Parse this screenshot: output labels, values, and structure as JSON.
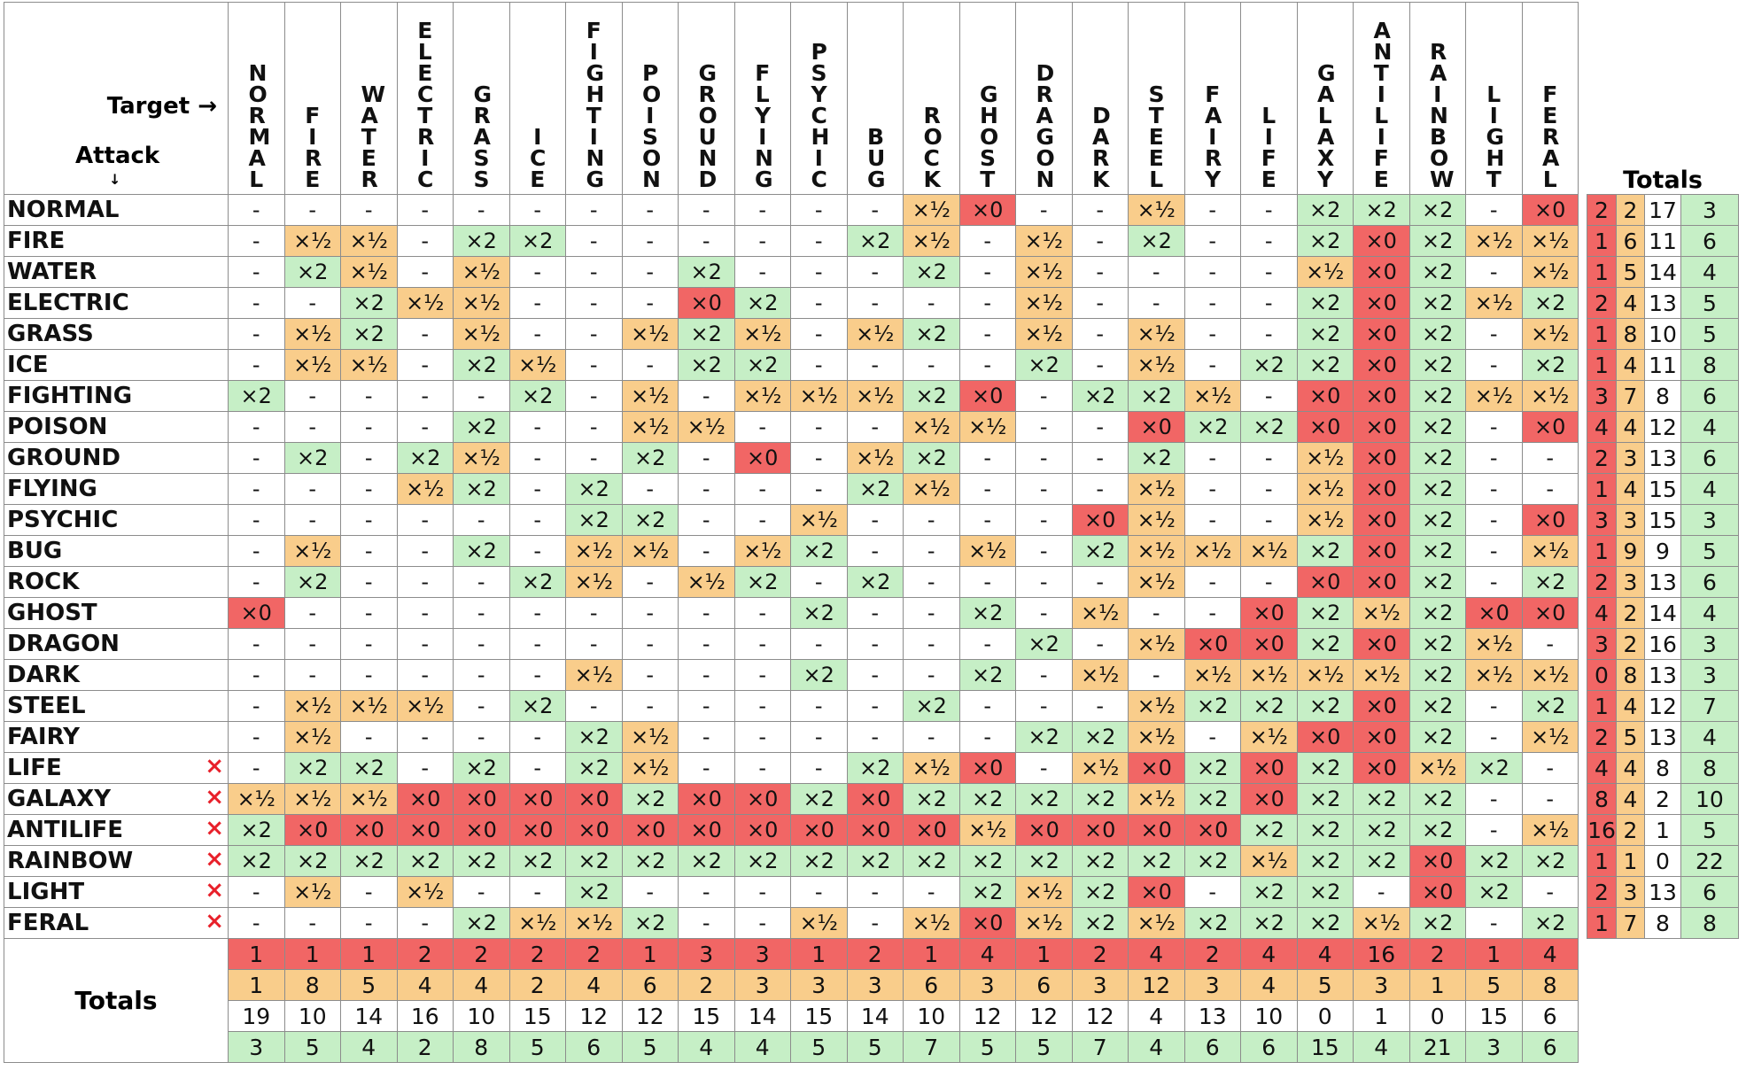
{
  "header": {
    "target_label": "Target →",
    "attack_label": "Attack",
    "down_arrow": "↓",
    "totals_label": "Totals"
  },
  "types": [
    "NORMAL",
    "FIRE",
    "WATER",
    "ELECTRIC",
    "GRASS",
    "ICE",
    "FIGHTING",
    "POISON",
    "GROUND",
    "FLYING",
    "PSYCHIC",
    "BUG",
    "ROCK",
    "GHOST",
    "DRAGON",
    "DARK",
    "STEEL",
    "FAIRY",
    "LIFE",
    "GALAXY",
    "ANTILIFE",
    "RAINBOW",
    "LIGHT",
    "FERAL"
  ],
  "rows": [
    {
      "name": "NORMAL",
      "marked": false,
      "cells": [
        "-",
        "-",
        "-",
        "-",
        "-",
        "-",
        "-",
        "-",
        "-",
        "-",
        "-",
        "-",
        "×½",
        "×0",
        "-",
        "-",
        "×½",
        "-",
        "-",
        "×2",
        "×2",
        "×2",
        "-",
        "×0"
      ],
      "totals": [
        "2",
        "2",
        "17",
        "3"
      ]
    },
    {
      "name": "FIRE",
      "marked": false,
      "cells": [
        "-",
        "×½",
        "×½",
        "-",
        "×2",
        "×2",
        "-",
        "-",
        "-",
        "-",
        "-",
        "×2",
        "×½",
        "-",
        "×½",
        "-",
        "×2",
        "-",
        "-",
        "×2",
        "×0",
        "×2",
        "×½",
        "×½"
      ],
      "totals": [
        "1",
        "6",
        "11",
        "6"
      ]
    },
    {
      "name": "WATER",
      "marked": false,
      "cells": [
        "-",
        "×2",
        "×½",
        "-",
        "×½",
        "-",
        "-",
        "-",
        "×2",
        "-",
        "-",
        "-",
        "×2",
        "-",
        "×½",
        "-",
        "-",
        "-",
        "-",
        "×½",
        "×0",
        "×2",
        "-",
        "×½"
      ],
      "totals": [
        "1",
        "5",
        "14",
        "4"
      ]
    },
    {
      "name": "ELECTRIC",
      "marked": false,
      "cells": [
        "-",
        "-",
        "×2",
        "×½",
        "×½",
        "-",
        "-",
        "-",
        "×0",
        "×2",
        "-",
        "-",
        "-",
        "-",
        "×½",
        "-",
        "-",
        "-",
        "-",
        "×2",
        "×0",
        "×2",
        "×½",
        "×2"
      ],
      "totals": [
        "2",
        "4",
        "13",
        "5"
      ]
    },
    {
      "name": "GRASS",
      "marked": false,
      "cells": [
        "-",
        "×½",
        "×2",
        "-",
        "×½",
        "-",
        "-",
        "×½",
        "×2",
        "×½",
        "-",
        "×½",
        "×2",
        "-",
        "×½",
        "-",
        "×½",
        "-",
        "-",
        "×2",
        "×0",
        "×2",
        "-",
        "×½"
      ],
      "totals": [
        "1",
        "8",
        "10",
        "5"
      ]
    },
    {
      "name": "ICE",
      "marked": false,
      "cells": [
        "-",
        "×½",
        "×½",
        "-",
        "×2",
        "×½",
        "-",
        "-",
        "×2",
        "×2",
        "-",
        "-",
        "-",
        "-",
        "×2",
        "-",
        "×½",
        "-",
        "×2",
        "×2",
        "×0",
        "×2",
        "-",
        "×2"
      ],
      "totals": [
        "1",
        "4",
        "11",
        "8"
      ]
    },
    {
      "name": "FIGHTING",
      "marked": false,
      "cells": [
        "×2",
        "-",
        "-",
        "-",
        "-",
        "×2",
        "-",
        "×½",
        "-",
        "×½",
        "×½",
        "×½",
        "×2",
        "×0",
        "-",
        "×2",
        "×2",
        "×½",
        "-",
        "×0",
        "×0",
        "×2",
        "×½",
        "×½"
      ],
      "totals": [
        "3",
        "7",
        "8",
        "6"
      ]
    },
    {
      "name": "POISON",
      "marked": false,
      "cells": [
        "-",
        "-",
        "-",
        "-",
        "×2",
        "-",
        "-",
        "×½",
        "×½",
        "-",
        "-",
        "-",
        "×½",
        "×½",
        "-",
        "-",
        "×0",
        "×2",
        "×2",
        "×0",
        "×0",
        "×2",
        "-",
        "×0"
      ],
      "totals": [
        "4",
        "4",
        "12",
        "4"
      ]
    },
    {
      "name": "GROUND",
      "marked": false,
      "cells": [
        "-",
        "×2",
        "-",
        "×2",
        "×½",
        "-",
        "-",
        "×2",
        "-",
        "×0",
        "-",
        "×½",
        "×2",
        "-",
        "-",
        "-",
        "×2",
        "-",
        "-",
        "×½",
        "×0",
        "×2",
        "-",
        "-"
      ],
      "totals": [
        "2",
        "3",
        "13",
        "6"
      ]
    },
    {
      "name": "FLYING",
      "marked": false,
      "cells": [
        "-",
        "-",
        "-",
        "×½",
        "×2",
        "-",
        "×2",
        "-",
        "-",
        "-",
        "-",
        "×2",
        "×½",
        "-",
        "-",
        "-",
        "×½",
        "-",
        "-",
        "×½",
        "×0",
        "×2",
        "-",
        "-"
      ],
      "totals": [
        "1",
        "4",
        "15",
        "4"
      ]
    },
    {
      "name": "PSYCHIC",
      "marked": false,
      "cells": [
        "-",
        "-",
        "-",
        "-",
        "-",
        "-",
        "×2",
        "×2",
        "-",
        "-",
        "×½",
        "-",
        "-",
        "-",
        "-",
        "×0",
        "×½",
        "-",
        "-",
        "×½",
        "×0",
        "×2",
        "-",
        "×0"
      ],
      "totals": [
        "3",
        "3",
        "15",
        "3"
      ]
    },
    {
      "name": "BUG",
      "marked": false,
      "cells": [
        "-",
        "×½",
        "-",
        "-",
        "×2",
        "-",
        "×½",
        "×½",
        "-",
        "×½",
        "×2",
        "-",
        "-",
        "×½",
        "-",
        "×2",
        "×½",
        "×½",
        "×½",
        "×2",
        "×0",
        "×2",
        "-",
        "×½"
      ],
      "totals": [
        "1",
        "9",
        "9",
        "5"
      ]
    },
    {
      "name": "ROCK",
      "marked": false,
      "cells": [
        "-",
        "×2",
        "-",
        "-",
        "-",
        "×2",
        "×½",
        "-",
        "×½",
        "×2",
        "-",
        "×2",
        "-",
        "-",
        "-",
        "-",
        "×½",
        "-",
        "-",
        "×0",
        "×0",
        "×2",
        "-",
        "×2"
      ],
      "totals": [
        "2",
        "3",
        "13",
        "6"
      ]
    },
    {
      "name": "GHOST",
      "marked": false,
      "cells": [
        "×0",
        "-",
        "-",
        "-",
        "-",
        "-",
        "-",
        "-",
        "-",
        "-",
        "×2",
        "-",
        "-",
        "×2",
        "-",
        "×½",
        "-",
        "-",
        "×0",
        "×2",
        "×½",
        "×2",
        "×0",
        "×0"
      ],
      "totals": [
        "4",
        "2",
        "14",
        "4"
      ]
    },
    {
      "name": "DRAGON",
      "marked": false,
      "cells": [
        "-",
        "-",
        "-",
        "-",
        "-",
        "-",
        "-",
        "-",
        "-",
        "-",
        "-",
        "-",
        "-",
        "-",
        "×2",
        "-",
        "×½",
        "×0",
        "×0",
        "×2",
        "×0",
        "×2",
        "×½",
        "-"
      ],
      "totals": [
        "3",
        "2",
        "16",
        "3"
      ]
    },
    {
      "name": "DARK",
      "marked": false,
      "cells": [
        "-",
        "-",
        "-",
        "-",
        "-",
        "-",
        "×½",
        "-",
        "-",
        "-",
        "×2",
        "-",
        "-",
        "×2",
        "-",
        "×½",
        "-",
        "×½",
        "×½",
        "×½",
        "×½",
        "×2",
        "×½",
        "×½"
      ],
      "totals": [
        "0",
        "8",
        "13",
        "3"
      ]
    },
    {
      "name": "STEEL",
      "marked": false,
      "cells": [
        "-",
        "×½",
        "×½",
        "×½",
        "-",
        "×2",
        "-",
        "-",
        "-",
        "-",
        "-",
        "-",
        "×2",
        "-",
        "-",
        "-",
        "×½",
        "×2",
        "×2",
        "×2",
        "×0",
        "×2",
        "-",
        "×2"
      ],
      "totals": [
        "1",
        "4",
        "12",
        "7"
      ]
    },
    {
      "name": "FAIRY",
      "marked": false,
      "cells": [
        "-",
        "×½",
        "-",
        "-",
        "-",
        "-",
        "×2",
        "×½",
        "-",
        "-",
        "-",
        "-",
        "-",
        "-",
        "×2",
        "×2",
        "×½",
        "-",
        "×½",
        "×0",
        "×0",
        "×2",
        "-",
        "×½"
      ],
      "totals": [
        "2",
        "5",
        "13",
        "4"
      ]
    },
    {
      "name": "LIFE",
      "marked": true,
      "cells": [
        "-",
        "×2",
        "×2",
        "-",
        "×2",
        "-",
        "×2",
        "×½",
        "-",
        "-",
        "-",
        "×2",
        "×½",
        "×0",
        "-",
        "×½",
        "×0",
        "×2",
        "×0",
        "×2",
        "×0",
        "×½",
        "×2",
        "-"
      ],
      "totals": [
        "4",
        "4",
        "8",
        "8"
      ]
    },
    {
      "name": "GALAXY",
      "marked": true,
      "cells": [
        "×½",
        "×½",
        "×½",
        "×0",
        "×0",
        "×0",
        "×0",
        "×2",
        "×0",
        "×0",
        "×2",
        "×0",
        "×2",
        "×2",
        "×2",
        "×2",
        "×½",
        "×2",
        "×0",
        "×2",
        "×2",
        "×2",
        "-",
        "-"
      ],
      "totals": [
        "8",
        "4",
        "2",
        "10"
      ]
    },
    {
      "name": "ANTILIFE",
      "marked": true,
      "cells": [
        "×2",
        "×0",
        "×0",
        "×0",
        "×0",
        "×0",
        "×0",
        "×0",
        "×0",
        "×0",
        "×0",
        "×0",
        "×0",
        "×½",
        "×0",
        "×0",
        "×0",
        "×0",
        "×2",
        "×2",
        "×2",
        "×2",
        "-",
        "×½"
      ],
      "totals": [
        "16",
        "2",
        "1",
        "5"
      ]
    },
    {
      "name": "RAINBOW",
      "marked": true,
      "cells": [
        "×2",
        "×2",
        "×2",
        "×2",
        "×2",
        "×2",
        "×2",
        "×2",
        "×2",
        "×2",
        "×2",
        "×2",
        "×2",
        "×2",
        "×2",
        "×2",
        "×2",
        "×2",
        "×½",
        "×2",
        "×2",
        "×0",
        "×2",
        "×2"
      ],
      "totals": [
        "1",
        "1",
        "0",
        "22"
      ]
    },
    {
      "name": "LIGHT",
      "marked": true,
      "cells": [
        "-",
        "×½",
        "-",
        "×½",
        "-",
        "-",
        "×2",
        "-",
        "-",
        "-",
        "-",
        "-",
        "-",
        "×2",
        "×½",
        "×2",
        "×0",
        "-",
        "×2",
        "×2",
        "-",
        "×0",
        "×2",
        "-"
      ],
      "totals": [
        "2",
        "3",
        "13",
        "6"
      ]
    },
    {
      "name": "FERAL",
      "marked": true,
      "cells": [
        "-",
        "-",
        "-",
        "-",
        "×2",
        "×½",
        "×½",
        "×2",
        "-",
        "-",
        "×½",
        "-",
        "×½",
        "×0",
        "×½",
        "×2",
        "×½",
        "×2",
        "×2",
        "×2",
        "×½",
        "×2",
        "-",
        "×2"
      ],
      "totals": [
        "1",
        "7",
        "8",
        "8"
      ]
    }
  ],
  "row_marker": "×",
  "column_totals": [
    [
      "1",
      "1",
      "1",
      "2",
      "2",
      "2",
      "2",
      "1",
      "3",
      "3",
      "1",
      "2",
      "1",
      "4",
      "1",
      "2",
      "4",
      "2",
      "4",
      "4",
      "16",
      "2",
      "1",
      "4"
    ],
    [
      "1",
      "8",
      "5",
      "4",
      "4",
      "2",
      "4",
      "6",
      "2",
      "3",
      "3",
      "3",
      "6",
      "3",
      "6",
      "3",
      "12",
      "3",
      "4",
      "5",
      "3",
      "1",
      "5",
      "8"
    ],
    [
      "19",
      "10",
      "14",
      "16",
      "10",
      "15",
      "12",
      "12",
      "15",
      "14",
      "15",
      "14",
      "10",
      "12",
      "12",
      "12",
      "4",
      "13",
      "10",
      "0",
      "1",
      "0",
      "15",
      "6"
    ],
    [
      "3",
      "5",
      "4",
      "2",
      "8",
      "5",
      "6",
      "5",
      "4",
      "4",
      "5",
      "5",
      "7",
      "5",
      "5",
      "7",
      "4",
      "6",
      "6",
      "15",
      "4",
      "21",
      "3",
      "6"
    ]
  ],
  "colors": {
    "zero": "#f16665",
    "half": "#f9cd8b",
    "double": "#c6efc6",
    "neutral": "#ffffff",
    "marker": "#e8202a"
  }
}
